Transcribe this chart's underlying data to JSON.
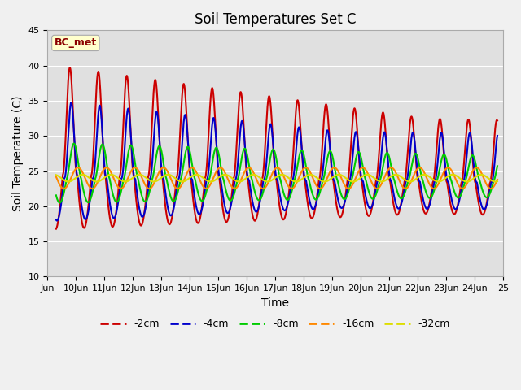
{
  "title": "Soil Temperatures Set C",
  "xlabel": "Time",
  "ylabel": "Soil Temperature (C)",
  "ylim": [
    10,
    45
  ],
  "xlim_days": [
    9,
    25
  ],
  "label_text": "BC_met",
  "series": [
    {
      "label": "-2cm",
      "color": "#cc0000",
      "depth_cm": 2
    },
    {
      "label": "-4cm",
      "color": "#0000cc",
      "depth_cm": 4
    },
    {
      "label": "-8cm",
      "color": "#00cc00",
      "depth_cm": 8
    },
    {
      "label": "-16cm",
      "color": "#ff8800",
      "depth_cm": 16
    },
    {
      "label": "-32cm",
      "color": "#dddd00",
      "depth_cm": 32
    }
  ],
  "grid_color": "#ffffff",
  "bg_color": "#e0e0e0",
  "fig_bg": "#f0f0f0",
  "tick_label_fontsize": 8,
  "axis_label_fontsize": 10,
  "title_fontsize": 12,
  "line_width": 1.5,
  "legend_fontsize": 9,
  "n_points": 2880,
  "total_days": 15.5,
  "start_day": 9.3
}
